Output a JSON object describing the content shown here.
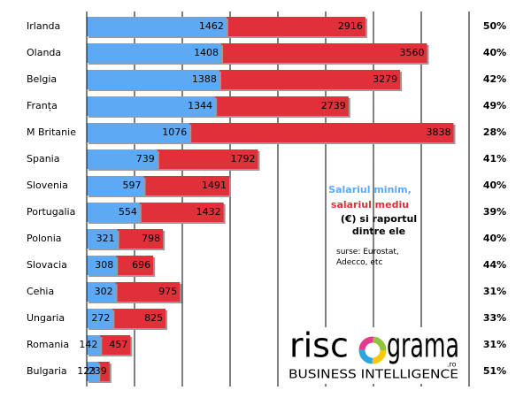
{
  "chart_data": {
    "type": "overlap-bar",
    "categories": [
      "Irlanda",
      "Olanda",
      "Belgia",
      "Franța",
      "M Britanie",
      "Spania",
      "Slovenia",
      "Portugalia",
      "Polonia",
      "Slovacia",
      "Cehia",
      "Ungaria",
      "Romania",
      "Bulgaria"
    ],
    "series": [
      {
        "name": "salariul mediu",
        "color": "#e0313a",
        "values": [
          2916,
          3560,
          3279,
          2739,
          3838,
          1792,
          1491,
          1432,
          798,
          696,
          975,
          825,
          457,
          239
        ]
      },
      {
        "name": "Salariul minim,",
        "color": "#5ea9f4",
        "values": [
          1462,
          1408,
          1388,
          1344,
          1076,
          739,
          597,
          554,
          321,
          308,
          302,
          272,
          142,
          123
        ]
      }
    ],
    "ratios": {
      "values": [
        50,
        40,
        42,
        49,
        28,
        41,
        40,
        39,
        40,
        44,
        31,
        33,
        31,
        51
      ],
      "value_labels": [
        "50%",
        "40%",
        "42%",
        "49%",
        "28%",
        "41%",
        "40%",
        "39%",
        "40%",
        "44%",
        "31%",
        "33%",
        "31%",
        "51%"
      ]
    },
    "xlim": [
      0,
      4000
    ],
    "xticks": [
      0,
      500,
      1000,
      1500,
      2000,
      2500,
      3000,
      3500,
      4000
    ],
    "grid": true,
    "legend_note": "(€) si raportul dintre ele",
    "source": "surse: Eurostat, Adecco, etc",
    "logo": {
      "left": "risc",
      "right": "grama",
      "suffix": ".ro",
      "tagline": "BUSINESS INTELLIGENCE"
    }
  }
}
